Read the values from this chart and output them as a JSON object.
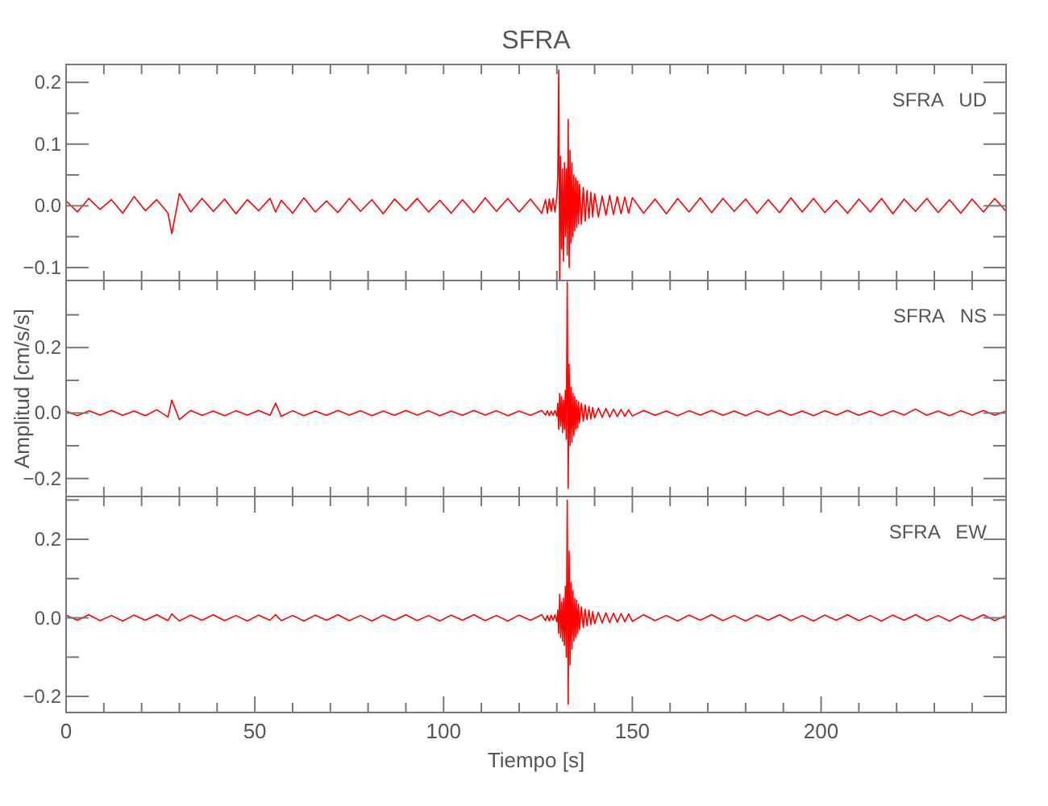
{
  "chart_data": [
    {
      "type": "line",
      "title": "SFRA",
      "annotations": [
        "SFRA   UD"
      ],
      "tick_labels": "y",
      "xlim": [
        0,
        249
      ],
      "ylim": [
        -0.121,
        0.229
      ],
      "xticks": [
        {
          "value": 0,
          "label": null
        },
        {
          "value": 10,
          "label": null
        },
        {
          "value": 20,
          "label": null
        },
        {
          "value": 30,
          "label": null
        },
        {
          "value": 40,
          "label": null
        },
        {
          "value": 50,
          "label": null
        },
        {
          "value": 60,
          "label": null
        },
        {
          "value": 70,
          "label": null
        },
        {
          "value": 80,
          "label": null
        },
        {
          "value": 90,
          "label": null
        },
        {
          "value": 100,
          "label": null
        },
        {
          "value": 110,
          "label": null
        },
        {
          "value": 120,
          "label": null
        },
        {
          "value": 130,
          "label": null
        },
        {
          "value": 140,
          "label": null
        },
        {
          "value": 150,
          "label": null
        },
        {
          "value": 160,
          "label": null
        },
        {
          "value": 170,
          "label": null
        },
        {
          "value": 180,
          "label": null
        },
        {
          "value": 190,
          "label": null
        },
        {
          "value": 200,
          "label": null
        },
        {
          "value": 210,
          "label": null
        },
        {
          "value": 220,
          "label": null
        },
        {
          "value": 230,
          "label": null
        },
        {
          "value": 240,
          "label": null
        }
      ],
      "yticks": [
        {
          "value": -0.1,
          "label": "−0.1"
        },
        {
          "value": -0.05,
          "label": null
        },
        {
          "value": 0,
          "label": "0.0"
        },
        {
          "value": 0.05,
          "label": null
        },
        {
          "value": 0.1,
          "label": "0.1"
        },
        {
          "value": 0.15,
          "label": null
        },
        {
          "value": 0.2,
          "label": "0.2"
        }
      ],
      "x": [
        0,
        3,
        6,
        9,
        12,
        15,
        18,
        21,
        24,
        27,
        28,
        30,
        33,
        36,
        39,
        42,
        45,
        48,
        51,
        54,
        55.5,
        57,
        60,
        63,
        66,
        69,
        72,
        75,
        78,
        81,
        84,
        87,
        90,
        93,
        96,
        99,
        102,
        105,
        108,
        111,
        114,
        117,
        120,
        123,
        126,
        127,
        127.5,
        128,
        128.5,
        129,
        129.5,
        130,
        130.25,
        130.5,
        130.75,
        131,
        131.25,
        131.5,
        131.75,
        132,
        132.25,
        132.5,
        132.75,
        133,
        133.25,
        133.5,
        133.75,
        134,
        134.25,
        134.5,
        134.75,
        135,
        135.25,
        135.5,
        135.75,
        136,
        136.5,
        137,
        137.5,
        138,
        138.5,
        139,
        139.5,
        140,
        141,
        142,
        143,
        144,
        145,
        146,
        147,
        148,
        149,
        150,
        153,
        156,
        159,
        162,
        165,
        168,
        171,
        174,
        177,
        180,
        183,
        186,
        189,
        192,
        195,
        198,
        201,
        204,
        207,
        210,
        213,
        216,
        219,
        222,
        225,
        228,
        231,
        234,
        237,
        240,
        243,
        246,
        249
      ],
      "series": [
        {
          "color": "#ff0000",
          "values": [
            0.008,
            -0.01,
            0.012,
            -0.006,
            0.01,
            -0.012,
            0.015,
            -0.008,
            0.01,
            -0.012,
            -0.045,
            0.02,
            -0.01,
            0.012,
            -0.009,
            0.011,
            -0.013,
            0.01,
            -0.008,
            0.012,
            -0.01,
            0.009,
            -0.012,
            0.013,
            -0.01,
            0.008,
            -0.011,
            0.012,
            -0.009,
            0.01,
            -0.013,
            0.011,
            -0.008,
            0.012,
            -0.01,
            0.009,
            -0.012,
            0.01,
            -0.011,
            0.013,
            -0.009,
            0.012,
            -0.01,
            0.011,
            -0.012,
            0.01,
            -0.012,
            0.011,
            -0.009,
            0.012,
            -0.01,
            0.015,
            0.05,
            0.22,
            -0.12,
            0.08,
            -0.07,
            0.06,
            -0.09,
            0.07,
            -0.05,
            0.06,
            -0.08,
            0.14,
            -0.1,
            0.09,
            -0.06,
            0.07,
            -0.05,
            0.05,
            -0.04,
            0.045,
            -0.035,
            0.04,
            -0.03,
            0.035,
            -0.03,
            0.03,
            -0.025,
            0.025,
            -0.02,
            0.022,
            -0.018,
            0.02,
            -0.018,
            0.016,
            -0.015,
            0.017,
            -0.014,
            0.015,
            -0.013,
            0.014,
            -0.012,
            0.013,
            -0.012,
            0.011,
            -0.013,
            0.012,
            -0.01,
            0.013,
            -0.011,
            0.012,
            -0.009,
            0.011,
            -0.012,
            0.01,
            -0.011,
            0.013,
            -0.01,
            0.012,
            -0.011,
            0.009,
            -0.012,
            0.011,
            -0.01,
            0.012,
            -0.013,
            0.011,
            -0.009,
            0.012,
            -0.011,
            0.01,
            -0.012,
            0.011,
            -0.01,
            0.012,
            -0.009
          ]
        }
      ]
    },
    {
      "type": "line",
      "ylabel": "Amplitud [cm/s/s]",
      "annotations": [
        "SFRA   NS"
      ],
      "tick_labels": "y",
      "xlim": [
        0,
        249
      ],
      "ylim": [
        -0.255,
        0.405
      ],
      "xticks": [
        {
          "value": 0,
          "label": null
        },
        {
          "value": 10,
          "label": null
        },
        {
          "value": 20,
          "label": null
        },
        {
          "value": 30,
          "label": null
        },
        {
          "value": 40,
          "label": null
        },
        {
          "value": 50,
          "label": null
        },
        {
          "value": 60,
          "label": null
        },
        {
          "value": 70,
          "label": null
        },
        {
          "value": 80,
          "label": null
        },
        {
          "value": 90,
          "label": null
        },
        {
          "value": 100,
          "label": null
        },
        {
          "value": 110,
          "label": null
        },
        {
          "value": 120,
          "label": null
        },
        {
          "value": 130,
          "label": null
        },
        {
          "value": 140,
          "label": null
        },
        {
          "value": 150,
          "label": null
        },
        {
          "value": 160,
          "label": null
        },
        {
          "value": 170,
          "label": null
        },
        {
          "value": 180,
          "label": null
        },
        {
          "value": 190,
          "label": null
        },
        {
          "value": 200,
          "label": null
        },
        {
          "value": 210,
          "label": null
        },
        {
          "value": 220,
          "label": null
        },
        {
          "value": 230,
          "label": null
        },
        {
          "value": 240,
          "label": null
        }
      ],
      "yticks": [
        {
          "value": -0.2,
          "label": "−0.2"
        },
        {
          "value": -0.1,
          "label": null
        },
        {
          "value": 0,
          "label": "0.0"
        },
        {
          "value": 0.1,
          "label": null
        },
        {
          "value": 0.2,
          "label": "0.2"
        },
        {
          "value": 0.3,
          "label": null
        }
      ],
      "x": [
        0,
        3,
        6,
        9,
        12,
        15,
        18,
        21,
        24,
        27,
        28,
        30,
        33,
        36,
        39,
        42,
        45,
        48,
        51,
        54,
        55.5,
        57,
        60,
        63,
        66,
        69,
        72,
        75,
        78,
        81,
        84,
        87,
        90,
        93,
        96,
        99,
        102,
        105,
        108,
        111,
        114,
        117,
        120,
        123,
        126,
        127,
        127.5,
        128,
        128.5,
        129,
        129.5,
        130,
        130.25,
        130.5,
        130.75,
        131,
        131.25,
        131.5,
        131.75,
        132,
        132.25,
        132.5,
        132.75,
        133,
        133.25,
        133.5,
        133.75,
        134,
        134.25,
        134.5,
        134.75,
        135,
        135.25,
        135.5,
        135.75,
        136,
        136.5,
        137,
        137.5,
        138,
        138.5,
        139,
        139.5,
        140,
        141,
        142,
        143,
        144,
        145,
        146,
        147,
        148,
        149,
        150,
        153,
        156,
        159,
        162,
        165,
        168,
        171,
        174,
        177,
        180,
        183,
        186,
        189,
        192,
        195,
        198,
        201,
        204,
        207,
        210,
        213,
        216,
        219,
        222,
        225,
        228,
        231,
        234,
        237,
        240,
        243,
        246,
        249
      ],
      "series": [
        {
          "color": "#ff0000",
          "values": [
            0.006,
            -0.008,
            0.007,
            -0.006,
            0.008,
            -0.007,
            0.006,
            -0.008,
            0.01,
            -0.012,
            0.04,
            -0.02,
            0.008,
            -0.007,
            0.006,
            -0.008,
            0.007,
            -0.006,
            0.008,
            -0.007,
            0.03,
            -0.01,
            0.007,
            -0.008,
            0.006,
            -0.007,
            0.008,
            -0.006,
            0.007,
            -0.008,
            0.006,
            -0.007,
            0.008,
            -0.006,
            0.007,
            -0.008,
            0.006,
            -0.007,
            0.008,
            -0.006,
            0.007,
            -0.008,
            0.006,
            -0.007,
            0.008,
            -0.006,
            0.007,
            -0.008,
            0.006,
            -0.007,
            0.008,
            -0.01,
            0.03,
            -0.05,
            0.06,
            -0.04,
            0.05,
            -0.06,
            0.04,
            -0.05,
            0.07,
            -0.08,
            0.4,
            -0.23,
            0.15,
            -0.1,
            0.08,
            -0.09,
            0.06,
            -0.07,
            0.05,
            -0.05,
            0.04,
            -0.045,
            0.035,
            -0.03,
            0.03,
            -0.025,
            0.025,
            -0.02,
            0.02,
            -0.018,
            0.017,
            -0.015,
            0.015,
            -0.013,
            0.014,
            -0.012,
            0.012,
            -0.011,
            0.011,
            -0.01,
            0.01,
            -0.009,
            0.008,
            -0.007,
            0.006,
            -0.008,
            0.007,
            -0.006,
            0.008,
            -0.007,
            0.006,
            -0.008,
            0.007,
            -0.006,
            0.008,
            -0.007,
            0.006,
            -0.008,
            0.007,
            -0.006,
            0.008,
            -0.007,
            0.006,
            -0.008,
            0.007,
            -0.006,
            0.012,
            -0.007,
            0.006,
            -0.008,
            0.007,
            -0.006,
            0.008,
            -0.007,
            0.006
          ]
        }
      ]
    },
    {
      "type": "line",
      "xlabel": "Tiempo [s]",
      "annotations": [
        "SFRA   EW"
      ],
      "xlim": [
        0,
        249
      ],
      "ylim": [
        -0.241,
        0.309
      ],
      "xticks": [
        {
          "value": 0,
          "label": "0"
        },
        {
          "value": 10,
          "label": null
        },
        {
          "value": 20,
          "label": null
        },
        {
          "value": 30,
          "label": null
        },
        {
          "value": 40,
          "label": null
        },
        {
          "value": 50,
          "label": "50"
        },
        {
          "value": 60,
          "label": null
        },
        {
          "value": 70,
          "label": null
        },
        {
          "value": 80,
          "label": null
        },
        {
          "value": 90,
          "label": null
        },
        {
          "value": 100,
          "label": "100"
        },
        {
          "value": 110,
          "label": null
        },
        {
          "value": 120,
          "label": null
        },
        {
          "value": 130,
          "label": null
        },
        {
          "value": 140,
          "label": null
        },
        {
          "value": 150,
          "label": "150"
        },
        {
          "value": 160,
          "label": null
        },
        {
          "value": 170,
          "label": null
        },
        {
          "value": 180,
          "label": null
        },
        {
          "value": 190,
          "label": null
        },
        {
          "value": 200,
          "label": "200"
        },
        {
          "value": 210,
          "label": null
        },
        {
          "value": 220,
          "label": null
        },
        {
          "value": 230,
          "label": null
        },
        {
          "value": 240,
          "label": null
        }
      ],
      "yticks": [
        {
          "value": -0.2,
          "label": "−0.2"
        },
        {
          "value": -0.1,
          "label": null
        },
        {
          "value": 0,
          "label": "0.0"
        },
        {
          "value": 0.1,
          "label": null
        },
        {
          "value": 0.2,
          "label": "0.2"
        },
        {
          "value": 0.3,
          "label": null
        }
      ],
      "x": [
        0,
        3,
        6,
        9,
        12,
        15,
        18,
        21,
        24,
        27,
        28,
        30,
        33,
        36,
        39,
        42,
        45,
        48,
        51,
        54,
        55.5,
        57,
        60,
        63,
        66,
        69,
        72,
        75,
        78,
        81,
        84,
        87,
        90,
        93,
        96,
        99,
        102,
        105,
        108,
        111,
        114,
        117,
        120,
        123,
        126,
        127,
        127.5,
        128,
        128.5,
        129,
        129.5,
        130,
        130.25,
        130.5,
        130.75,
        131,
        131.25,
        131.5,
        131.75,
        132,
        132.25,
        132.5,
        132.75,
        133,
        133.25,
        133.5,
        133.75,
        134,
        134.25,
        134.5,
        134.75,
        135,
        135.25,
        135.5,
        135.75,
        136,
        136.5,
        137,
        137.5,
        138,
        138.5,
        139,
        139.5,
        140,
        141,
        142,
        143,
        144,
        145,
        146,
        147,
        148,
        149,
        150,
        153,
        156,
        159,
        162,
        165,
        168,
        171,
        174,
        177,
        180,
        183,
        186,
        189,
        192,
        195,
        198,
        201,
        204,
        207,
        210,
        213,
        216,
        219,
        222,
        225,
        228,
        231,
        234,
        237,
        240,
        243,
        246,
        249
      ],
      "series": [
        {
          "color": "#ff0000",
          "values": [
            0.007,
            -0.006,
            0.008,
            -0.007,
            0.006,
            -0.008,
            0.007,
            -0.006,
            0.008,
            -0.007,
            0.01,
            -0.008,
            0.007,
            -0.006,
            0.008,
            -0.007,
            0.006,
            -0.008,
            0.007,
            -0.006,
            0.008,
            -0.007,
            0.006,
            -0.008,
            0.007,
            -0.006,
            0.008,
            -0.007,
            0.006,
            -0.008,
            0.007,
            -0.006,
            0.008,
            -0.007,
            0.006,
            -0.008,
            0.007,
            -0.006,
            0.008,
            -0.007,
            0.006,
            -0.008,
            0.007,
            -0.006,
            0.008,
            -0.007,
            0.006,
            -0.008,
            0.007,
            -0.006,
            0.008,
            -0.01,
            0.02,
            -0.04,
            0.06,
            -0.05,
            0.04,
            -0.06,
            0.05,
            -0.07,
            0.08,
            -0.1,
            0.3,
            -0.22,
            0.17,
            -0.12,
            0.09,
            -0.08,
            0.07,
            -0.06,
            0.05,
            -0.05,
            0.045,
            -0.04,
            0.035,
            -0.03,
            0.028,
            -0.025,
            0.022,
            -0.02,
            0.02,
            -0.017,
            0.016,
            -0.015,
            0.014,
            -0.013,
            0.013,
            -0.012,
            0.012,
            -0.011,
            0.011,
            -0.01,
            0.01,
            -0.009,
            0.008,
            -0.007,
            0.006,
            -0.008,
            0.007,
            -0.006,
            0.008,
            -0.007,
            0.006,
            -0.008,
            0.007,
            -0.006,
            0.008,
            -0.007,
            0.006,
            -0.008,
            0.007,
            -0.006,
            0.008,
            -0.007,
            0.006,
            -0.008,
            0.007,
            -0.006,
            0.008,
            -0.007,
            0.006,
            -0.008,
            0.007,
            -0.006,
            0.008,
            -0.007,
            0.006
          ]
        }
      ]
    }
  ]
}
